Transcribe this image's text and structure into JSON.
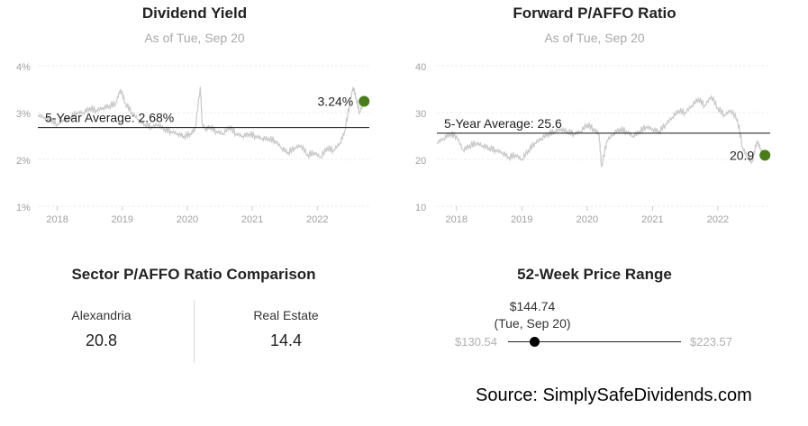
{
  "charts": [
    {
      "title": "Dividend Yield",
      "subtitle": "As of Tue, Sep 20",
      "y_ticks": [
        "4%",
        "3%",
        "2%",
        "1%"
      ],
      "x_ticks": [
        "2018",
        "2019",
        "2020",
        "2021",
        "2022"
      ],
      "average_label": "5-Year Average: 2.68%",
      "current_label": "3.24%",
      "marker_color": "#4a7c1c"
    },
    {
      "title": "Forward P/AFFO Ratio",
      "subtitle": "As of Tue, Sep 20",
      "y_ticks": [
        "40",
        "30",
        "20",
        "10"
      ],
      "x_ticks": [
        "2018",
        "2019",
        "2020",
        "2021",
        "2022"
      ],
      "average_label": "5-Year Average: 25.6",
      "current_label": "20.9",
      "marker_color": "#4a7c1c"
    }
  ],
  "chart_data": [
    {
      "type": "line",
      "title": "Dividend Yield",
      "subtitle": "As of Tue, Sep 20",
      "ylim": [
        1,
        4
      ],
      "y_unit": "%",
      "xlim": [
        2017.7,
        2022.8
      ],
      "x_ticks": [
        2018,
        2019,
        2020,
        2021,
        2022
      ],
      "y_ticks": [
        4,
        3,
        2,
        1
      ],
      "grid": true,
      "average": 2.68,
      "current": {
        "x": 2022.72,
        "y": 3.24
      },
      "series": [
        {
          "color": "#c8c8c8",
          "x": [
            2017.7,
            2017.8,
            2017.9,
            2018.0,
            2018.1,
            2018.2,
            2018.3,
            2018.4,
            2018.5,
            2018.6,
            2018.7,
            2018.8,
            2018.9,
            2018.97,
            2019.05,
            2019.15,
            2019.25,
            2019.35,
            2019.45,
            2019.55,
            2019.65,
            2019.75,
            2019.85,
            2019.95,
            2020.05,
            2020.12,
            2020.2,
            2020.23,
            2020.28,
            2020.35,
            2020.45,
            2020.55,
            2020.65,
            2020.75,
            2020.85,
            2020.95,
            2021.05,
            2021.15,
            2021.25,
            2021.35,
            2021.45,
            2021.55,
            2021.65,
            2021.75,
            2021.85,
            2021.95,
            2022.05,
            2022.15,
            2022.25,
            2022.35,
            2022.42,
            2022.5,
            2022.55,
            2022.6,
            2022.65,
            2022.72
          ],
          "y": [
            2.95,
            2.9,
            2.85,
            2.75,
            2.85,
            2.9,
            3.0,
            3.0,
            3.1,
            3.05,
            3.1,
            3.15,
            3.2,
            3.5,
            3.2,
            3.0,
            2.85,
            2.75,
            2.7,
            2.75,
            2.65,
            2.6,
            2.55,
            2.5,
            2.55,
            2.65,
            3.55,
            2.75,
            2.65,
            2.7,
            2.6,
            2.55,
            2.7,
            2.55,
            2.5,
            2.55,
            2.5,
            2.45,
            2.45,
            2.4,
            2.25,
            2.15,
            2.25,
            2.3,
            2.1,
            2.15,
            2.05,
            2.25,
            2.2,
            2.35,
            2.6,
            3.2,
            3.55,
            3.3,
            3.0,
            3.24
          ]
        }
      ]
    },
    {
      "type": "line",
      "title": "Forward P/AFFO Ratio",
      "subtitle": "As of Tue, Sep 20",
      "ylim": [
        10,
        40
      ],
      "xlim": [
        2017.7,
        2022.8
      ],
      "x_ticks": [
        2018,
        2019,
        2020,
        2021,
        2022
      ],
      "y_ticks": [
        40,
        30,
        20,
        10
      ],
      "grid": true,
      "average": 25.6,
      "current": {
        "x": 2022.72,
        "y": 20.9
      },
      "series": [
        {
          "color": "#c8c8c8",
          "x": [
            2017.7,
            2017.8,
            2017.9,
            2018.0,
            2018.1,
            2018.2,
            2018.3,
            2018.4,
            2018.5,
            2018.6,
            2018.7,
            2018.8,
            2018.9,
            2019.0,
            2019.1,
            2019.2,
            2019.3,
            2019.4,
            2019.5,
            2019.6,
            2019.7,
            2019.8,
            2019.9,
            2020.0,
            2020.1,
            2020.18,
            2020.22,
            2020.3,
            2020.4,
            2020.5,
            2020.6,
            2020.7,
            2020.8,
            2020.9,
            2021.0,
            2021.1,
            2021.2,
            2021.3,
            2021.4,
            2021.5,
            2021.6,
            2021.7,
            2021.8,
            2021.9,
            2022.0,
            2022.1,
            2022.2,
            2022.3,
            2022.38,
            2022.45,
            2022.52,
            2022.6,
            2022.66,
            2022.72
          ],
          "y": [
            23.5,
            24.5,
            25.5,
            25.0,
            22.0,
            23.0,
            23.5,
            23.0,
            22.5,
            22.0,
            21.5,
            20.5,
            21.0,
            20.0,
            22.0,
            23.5,
            24.5,
            25.5,
            26.0,
            26.5,
            26.0,
            25.5,
            26.0,
            27.5,
            26.5,
            25.5,
            18.5,
            24.0,
            25.5,
            26.5,
            26.0,
            25.0,
            26.0,
            27.0,
            26.5,
            26.0,
            27.5,
            29.0,
            30.5,
            30.0,
            31.5,
            33.0,
            31.5,
            33.5,
            31.0,
            29.5,
            30.5,
            28.5,
            22.5,
            20.5,
            19.5,
            24.0,
            22.0,
            20.9
          ]
        }
      ]
    }
  ],
  "comparison": {
    "title": "Sector P/AFFO Ratio Comparison",
    "items": [
      {
        "name": "Alexandria",
        "value": "20.8"
      },
      {
        "name": "Real Estate",
        "value": "14.4"
      }
    ]
  },
  "price_range": {
    "title": "52-Week Price Range",
    "current_price": "$144.74",
    "current_date": "(Tue, Sep 20)",
    "low_label": "$130.54",
    "high_label": "$223.57",
    "low": 130.54,
    "high": 223.57,
    "current": 144.74
  },
  "source": "Source: SimplySafeDividends.com"
}
